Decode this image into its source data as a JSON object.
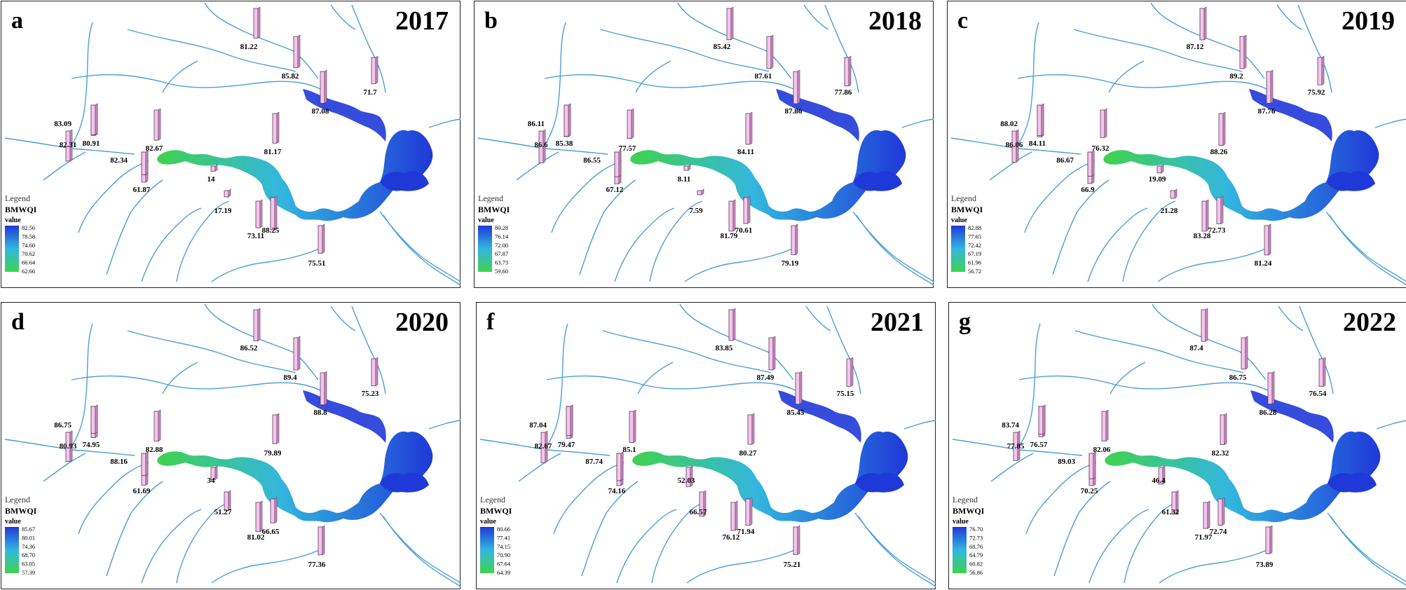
{
  "figure": {
    "legend_title": "Legend",
    "index_name": "BMWQI",
    "legend_value_label": "value",
    "colors": {
      "bar_face": "#f4c6ec",
      "bar_side": "#c98bc0",
      "river": "#4a9fd8",
      "scale_high": "#1f39d8",
      "scale_mid": "#33b6df",
      "scale_low": "#3fd24e",
      "border": "#222222"
    }
  },
  "panels": [
    {
      "letter": "a",
      "year": "2017",
      "legend_ticks": [
        "82.56",
        "78.58",
        "74.60",
        "70.62",
        "66.64",
        "62.66"
      ],
      "sites": [
        "81.22",
        "85.82",
        "87.08",
        "71.7",
        "83.09",
        "80.91",
        "82.67",
        "82.31",
        "82.34",
        "61.87",
        "81.17",
        "14",
        "17.19",
        "73.11",
        "88.25",
        "75.51"
      ]
    },
    {
      "letter": "b",
      "year": "2018",
      "legend_ticks": [
        "80.28",
        "76.14",
        "72.00",
        "67.87",
        "63.73",
        "59.60"
      ],
      "sites": [
        "85.42",
        "87.61",
        "87.86",
        "77.86",
        "86.11",
        "85.38",
        "77.57",
        "86.6",
        "86.55",
        "67.12",
        "84.11",
        "8.11",
        "7.59",
        "81.79",
        "70.61",
        "79.19"
      ]
    },
    {
      "letter": "c",
      "year": "2019",
      "legend_ticks": [
        "82.88",
        "77.65",
        "72.42",
        "67.19",
        "61.96",
        "56.72"
      ],
      "sites": [
        "87.12",
        "89.2",
        "87.76",
        "75.92",
        "88.02",
        "84.11",
        "76.32",
        "86.06",
        "86.67",
        "66.9",
        "88.26",
        "19.09",
        "21.28",
        "83.28",
        "72.73",
        "81.24"
      ]
    },
    {
      "letter": "d",
      "year": "2020",
      "legend_ticks": [
        "85.67",
        "80.01",
        "74.36",
        "68.70",
        "63.05",
        "57.39"
      ],
      "sites": [
        "86.52",
        "89.4",
        "88.8",
        "75.23",
        "86.75",
        "74.95",
        "82.88",
        "80.93",
        "88.16",
        "61.69",
        "79.89",
        "34",
        "51.27",
        "81.02",
        "66.65",
        "77.36"
      ]
    },
    {
      "letter": "f",
      "year": "2021",
      "legend_ticks": [
        "80.66",
        "77.41",
        "74.15",
        "70.90",
        "67.64",
        "64.39"
      ],
      "sites": [
        "83.85",
        "87.49",
        "85.45",
        "75.15",
        "87.04",
        "79.47",
        "85.1",
        "82.67",
        "87.74",
        "74.16",
        "80.27",
        "52.03",
        "66.57",
        "76.12",
        "71.94",
        "75.21"
      ]
    },
    {
      "letter": "g",
      "year": "2022",
      "legend_ticks": [
        "76.70",
        "72.73",
        "68.76",
        "64.79",
        "60.82",
        "56.86"
      ],
      "sites": [
        "87.4",
        "86.75",
        "86.28",
        "76.54",
        "83.74",
        "76.57",
        "82.06",
        "77.85",
        "89.03",
        "70.25",
        "82.32",
        "46.4",
        "61.32",
        "71.97",
        "72.74",
        "73.89"
      ]
    }
  ]
}
